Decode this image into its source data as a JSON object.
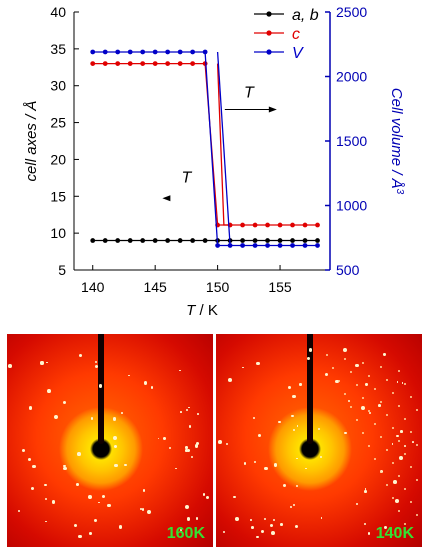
{
  "chart_data": {
    "type": "line",
    "x": [
      140,
      141,
      142,
      143,
      144,
      145,
      146,
      147,
      148,
      149,
      150,
      151,
      152,
      153,
      154,
      155,
      156,
      157,
      158
    ],
    "xlabel_var": "T",
    "xlabel_unit": " / K",
    "xlim": [
      138.5,
      159
    ],
    "xticks": [
      140,
      145,
      150,
      155
    ],
    "ylabel_left": "cell axes / Å",
    "ylim_left": [
      5,
      40
    ],
    "yticks_left": [
      5,
      10,
      15,
      20,
      25,
      30,
      35,
      40
    ],
    "ylabel_right": "Cell volume / Å",
    "ylabel_right_sup": "3",
    "ylim_right": [
      500,
      2500
    ],
    "yticks_right": [
      500,
      1000,
      1500,
      2000,
      2500
    ],
    "right_axis_color": "#0000b4",
    "series": [
      {
        "name": "a, b",
        "color": "#000000",
        "axis": "left",
        "x": [
          140,
          141,
          142,
          143,
          144,
          145,
          146,
          147,
          148,
          149,
          150,
          151,
          152,
          153,
          154,
          155,
          156,
          157,
          158
        ],
        "values": [
          9,
          9,
          9,
          9,
          9,
          9,
          9,
          9,
          9,
          9,
          9,
          9,
          9,
          9,
          9,
          9,
          9,
          9,
          9
        ]
      },
      {
        "name": "c",
        "color": "#e00000",
        "axis": "left",
        "segments": [
          {
            "x": [
              140,
              141,
              142,
              143,
              144,
              145,
              146,
              147,
              148,
              149,
              150,
              151,
              152,
              153,
              154,
              155,
              156,
              157,
              158
            ],
            "values": [
              33,
              33,
              33,
              33,
              33,
              33,
              33,
              33,
              33,
              33,
              11.1,
              11.1,
              11.1,
              11.1,
              11.1,
              11.1,
              11.1,
              11.1,
              11.1
            ]
          },
          {
            "x": [
              150,
              150.5,
              151
            ],
            "values": [
              33,
              11.1,
              11.1
            ]
          }
        ]
      },
      {
        "name": "V",
        "color": "#0000c8",
        "axis": "right",
        "segments": [
          {
            "x": [
              140,
              141,
              142,
              143,
              144,
              145,
              146,
              147,
              148,
              149,
              150,
              151,
              152,
              153,
              154,
              155,
              156,
              157,
              158
            ],
            "values": [
              2190,
              2190,
              2190,
              2190,
              2190,
              2190,
              2190,
              2190,
              2190,
              2190,
              690,
              690,
              690,
              690,
              690,
              690,
              690,
              690,
              690
            ]
          },
          {
            "x": [
              150,
              151
            ],
            "values": [
              2190,
              690
            ]
          }
        ]
      }
    ],
    "annotations": [
      {
        "text": "T",
        "x": 152.5,
        "y": 28.4,
        "arrow": "right"
      },
      {
        "text": "T",
        "x": 147.5,
        "y": 16.9,
        "arrow": "left"
      }
    ],
    "legend_position": "top-right"
  },
  "images": {
    "left_label": "160K",
    "right_label": "140K"
  }
}
